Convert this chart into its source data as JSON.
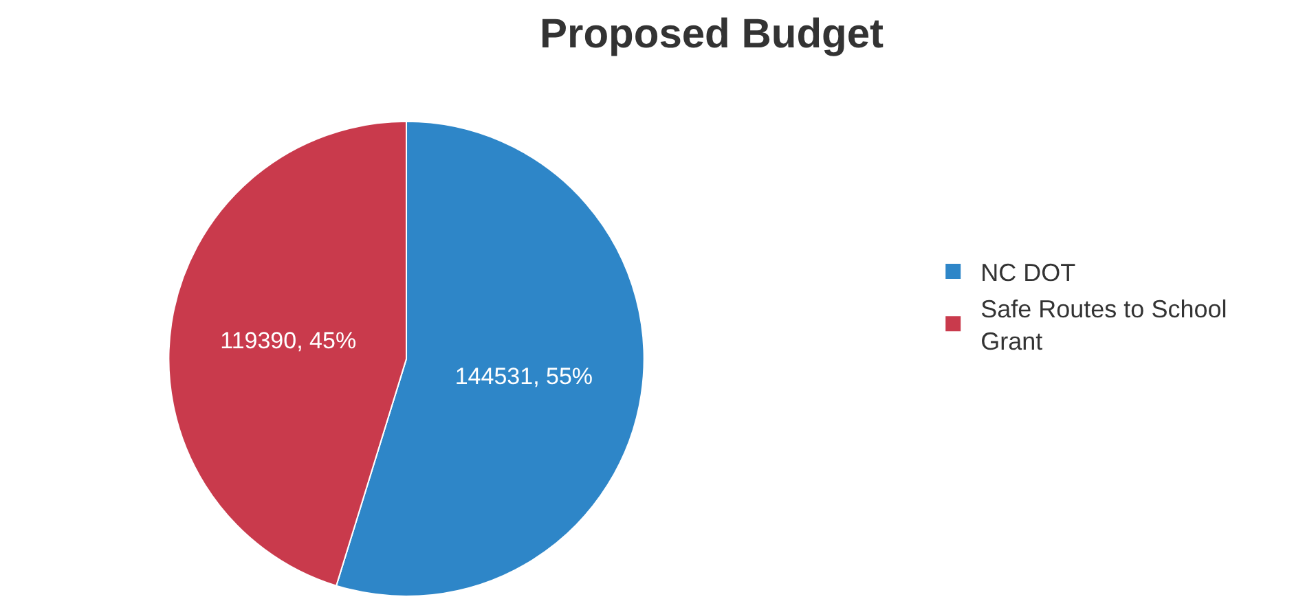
{
  "chart_data": {
    "type": "pie",
    "title": "Proposed Budget",
    "categories": [
      "NC DOT",
      "Safe Routes to School Grant"
    ],
    "values": [
      144531,
      119390
    ],
    "value_labels": [
      "144531, 55%",
      "119390, 45%"
    ],
    "colors": [
      "#2e86c8",
      "#c93a4c"
    ],
    "legend": "right"
  }
}
